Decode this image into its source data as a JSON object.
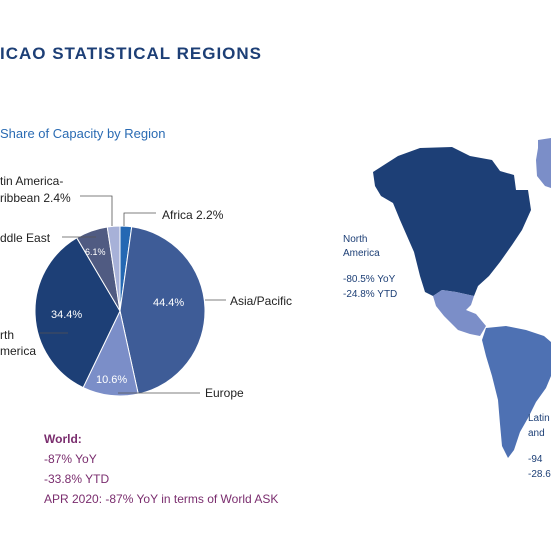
{
  "header": {
    "title": "ICAO STATISTICAL REGIONS"
  },
  "chart_data": {
    "type": "pie",
    "title": "Share of Capacity by Region",
    "slices": [
      {
        "label": "Africa",
        "value": 2.2,
        "display": "Africa 2.2%",
        "color": "#2468b3"
      },
      {
        "label": "Asia/Pacific",
        "value": 44.4,
        "display": "Asia/Pacific",
        "value_label": "44.4%",
        "color": "#3e5c97"
      },
      {
        "label": "Europe",
        "value": 10.6,
        "display": "Europe",
        "value_label": "10.6%",
        "color": "#7b8ec8"
      },
      {
        "label": "North America",
        "value": 34.4,
        "display_lines": [
          "rth",
          "merica"
        ],
        "value_label": "34.4%",
        "color": "#1d3f76"
      },
      {
        "label": "Middle East",
        "value": 6.1,
        "display": "ddle East",
        "value_label": "6.1%",
        "color": "#505b82"
      },
      {
        "label": "Latin America-Caribbean",
        "value": 2.4,
        "display_lines": [
          "tin America-",
          "ribbean 2.4%"
        ],
        "color": "#a7b1d8"
      }
    ]
  },
  "world": {
    "title": "World:",
    "yoy": "-87% YoY",
    "ytd": "-33.8% YTD",
    "note": "APR 2020: -87% YoY in terms of World ASK"
  },
  "map": {
    "regions": [
      {
        "name_lines": [
          "North",
          "America"
        ],
        "stats": [
          "-80.5% YoY",
          "-24.8% YTD"
        ]
      },
      {
        "name_lines": [
          "Latin",
          "and"
        ],
        "stats": [
          "-94",
          "-28.6"
        ]
      }
    ],
    "colors": {
      "north_america": "#1d3f76",
      "central": "#7b8ec8",
      "latin": "#4e71b3",
      "greenland": "#7b8ec8"
    }
  }
}
